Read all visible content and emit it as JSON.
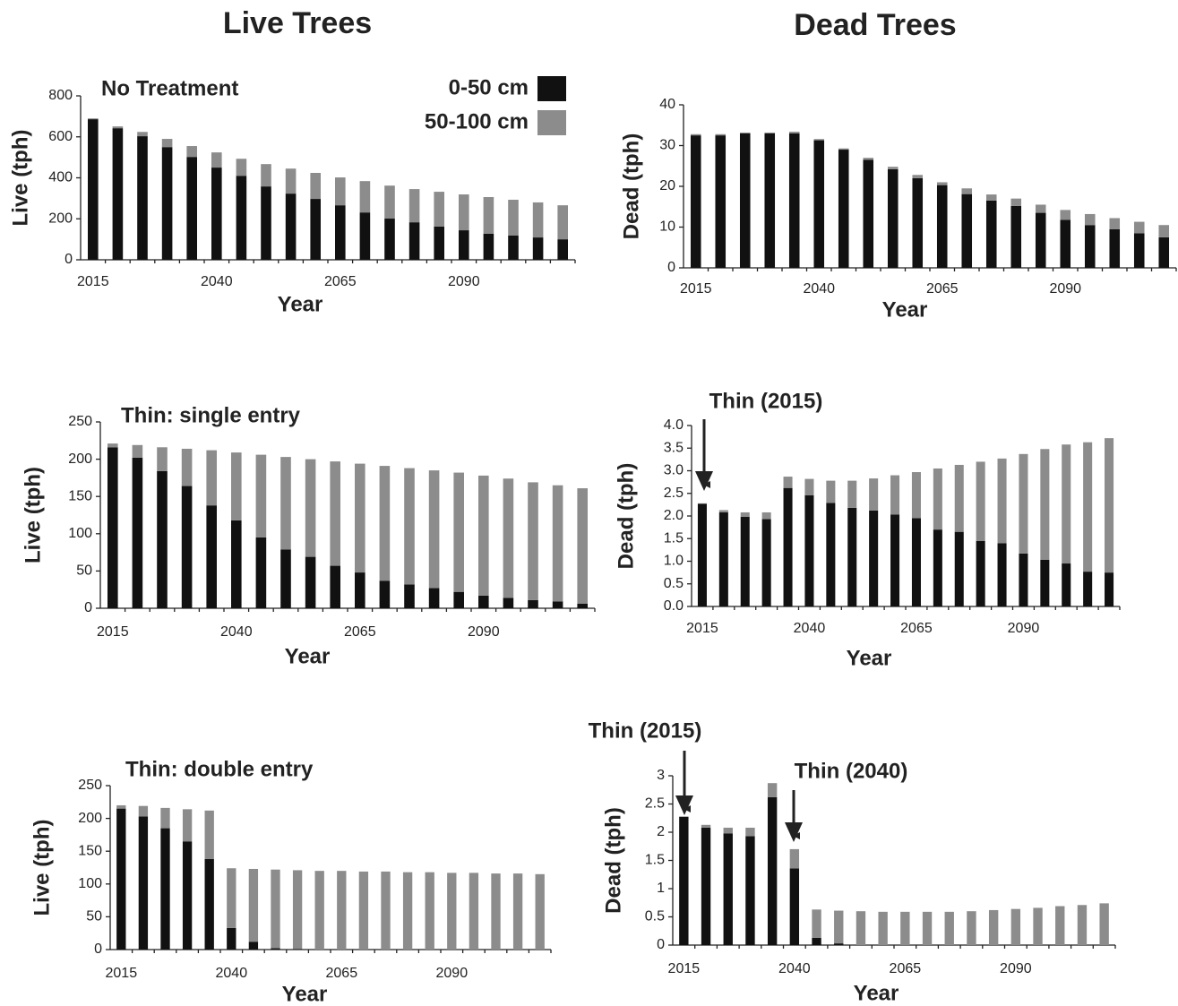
{
  "column_titles": [
    "Live Trees",
    "Dead Trees"
  ],
  "chart_data": [
    {
      "type": "bar",
      "stacked": true,
      "title": "No Treatment",
      "x_label": "Year",
      "y_label": "Live (tph)",
      "categories": [
        "2015",
        null,
        null,
        null,
        null,
        "2040",
        null,
        null,
        null,
        null,
        "2065",
        null,
        null,
        null,
        null,
        "2090",
        null,
        null,
        null,
        null
      ],
      "series": [
        {
          "name": "0-50 cm",
          "color": "#111111",
          "values": [
            686,
            642,
            603,
            550,
            502,
            450,
            410,
            358,
            323,
            297,
            266,
            231,
            201,
            183,
            162,
            144,
            127,
            118,
            109,
            100
          ]
        },
        {
          "name": "50-100 cm",
          "color": "#8c8c8c",
          "values": [
            4,
            9,
            21,
            40,
            53,
            74,
            83,
            109,
            122,
            127,
            136,
            153,
            161,
            162,
            170,
            175,
            179,
            175,
            171,
            166
          ]
        }
      ],
      "ylim": [
        0,
        800
      ],
      "yticks": [
        0,
        200,
        400,
        600,
        800
      ],
      "grid": false,
      "legend": "upper right"
    },
    {
      "type": "bar",
      "stacked": true,
      "x_label": "Year",
      "y_label": "Dead (tph)",
      "categories": [
        "2015",
        null,
        null,
        null,
        null,
        "2040",
        null,
        null,
        null,
        null,
        "2065",
        null,
        null,
        null,
        null,
        "2090",
        null,
        null,
        null,
        null
      ],
      "series": [
        {
          "color": "#111111",
          "values": [
            32.5,
            32.5,
            33,
            33,
            33,
            31.3,
            29,
            26.5,
            24.2,
            22,
            20.3,
            18.1,
            16.5,
            15.2,
            13.5,
            11.8,
            10.5,
            9.5,
            8.5,
            7.5
          ]
        },
        {
          "color": "#8c8c8c",
          "values": [
            0.3,
            0.3,
            0.2,
            0.2,
            0.4,
            0.3,
            0.3,
            0.5,
            0.6,
            0.8,
            0.7,
            1.4,
            1.5,
            1.8,
            2,
            2.4,
            2.7,
            2.7,
            2.8,
            3
          ]
        }
      ],
      "ylim": [
        0,
        40
      ],
      "yticks": [
        0,
        10,
        20,
        30,
        40
      ],
      "grid": false
    },
    {
      "type": "bar",
      "stacked": true,
      "title": "Thin: single entry",
      "x_label": "Year",
      "y_label": "Live (tph)",
      "categories": [
        "2015",
        null,
        null,
        null,
        null,
        "2040",
        null,
        null,
        null,
        null,
        "2065",
        null,
        null,
        null,
        null,
        "2090",
        null,
        null,
        null,
        null
      ],
      "series": [
        {
          "color": "#111111",
          "values": [
            216,
            202,
            184,
            164,
            138,
            118,
            95,
            79,
            69,
            57,
            48,
            37,
            32,
            27,
            22,
            17,
            14,
            11,
            9,
            6
          ]
        },
        {
          "color": "#8c8c8c",
          "values": [
            5,
            17,
            32,
            50,
            74,
            91,
            111,
            124,
            131,
            140,
            146,
            154,
            156,
            158,
            160,
            161,
            160,
            158,
            156,
            155
          ]
        }
      ],
      "ylim": [
        0,
        250
      ],
      "yticks": [
        0,
        50,
        100,
        150,
        200,
        250
      ],
      "grid": false
    },
    {
      "type": "bar",
      "stacked": true,
      "x_label": "Year",
      "y_label": "Dead (tph)",
      "annotations": [
        "Thin (2015)"
      ],
      "categories": [
        "2015",
        null,
        null,
        null,
        null,
        "2040",
        null,
        null,
        null,
        null,
        "2065",
        null,
        null,
        null,
        null,
        "2090",
        null,
        null,
        null,
        null
      ],
      "series": [
        {
          "color": "#111111",
          "values": [
            2.27,
            2.08,
            1.98,
            1.93,
            2.62,
            2.46,
            2.29,
            2.18,
            2.12,
            2.03,
            1.95,
            1.7,
            1.65,
            1.45,
            1.4,
            1.17,
            1.03,
            0.95,
            0.77,
            0.75
          ]
        },
        {
          "color": "#8c8c8c",
          "values": [
            0.01,
            0.05,
            0.1,
            0.15,
            0.25,
            0.36,
            0.49,
            0.6,
            0.71,
            0.87,
            1.02,
            1.35,
            1.48,
            1.75,
            1.87,
            2.2,
            2.45,
            2.63,
            2.86,
            2.97
          ]
        }
      ],
      "ylim": [
        0,
        4
      ],
      "yticks": [
        {
          "value": 0,
          "label": "0.0"
        },
        0.5,
        {
          "value": 1,
          "label": "1.0"
        },
        1.5,
        {
          "value": 2,
          "label": "2.0"
        },
        2.5,
        {
          "value": 3,
          "label": "3.0"
        },
        3.5,
        {
          "value": 4,
          "label": "4.0"
        }
      ],
      "grid": false
    },
    {
      "type": "bar",
      "stacked": true,
      "title": "Thin: double entry",
      "x_label": "Year",
      "y_label": "Live (tph)",
      "categories": [
        "2015",
        null,
        null,
        null,
        null,
        "2040",
        null,
        null,
        null,
        null,
        "2065",
        null,
        null,
        null,
        null,
        "2090",
        null,
        null,
        null,
        null
      ],
      "series": [
        {
          "color": "#111111",
          "values": [
            215,
            203,
            185,
            165,
            138,
            33,
            12,
            2,
            1,
            0,
            0,
            0,
            0,
            0,
            0,
            0,
            0,
            0,
            0,
            0
          ]
        },
        {
          "color": "#8c8c8c",
          "values": [
            5,
            16,
            31,
            49,
            74,
            91,
            111,
            120,
            120,
            120,
            120,
            119,
            119,
            118,
            118,
            117,
            117,
            116,
            116,
            115
          ]
        }
      ],
      "ylim": [
        0,
        250
      ],
      "yticks": [
        0,
        50,
        100,
        150,
        200,
        250
      ],
      "grid": false
    },
    {
      "type": "bar",
      "stacked": true,
      "x_label": "Year",
      "y_label": "Dead (tph)",
      "annotations": [
        "Thin (2015)",
        "Thin (2040)"
      ],
      "categories": [
        "2015",
        null,
        null,
        null,
        null,
        "2040",
        null,
        null,
        null,
        null,
        "2065",
        null,
        null,
        null,
        null,
        "2090",
        null,
        null,
        null,
        null
      ],
      "series": [
        {
          "color": "#111111",
          "values": [
            2.27,
            2.08,
            1.98,
            1.93,
            2.62,
            1.36,
            0.13,
            0.03,
            0,
            0,
            0,
            0,
            0,
            0,
            0,
            0,
            0,
            0,
            0,
            0
          ]
        },
        {
          "color": "#8c8c8c",
          "values": [
            0.01,
            0.05,
            0.1,
            0.15,
            0.25,
            0.34,
            0.5,
            0.58,
            0.6,
            0.59,
            0.59,
            0.59,
            0.59,
            0.6,
            0.62,
            0.64,
            0.66,
            0.69,
            0.71,
            0.74
          ]
        }
      ],
      "ylim": [
        0,
        3
      ],
      "yticks": [
        0,
        0.5,
        1,
        1.5,
        2,
        2.5,
        3
      ],
      "grid": false
    }
  ]
}
